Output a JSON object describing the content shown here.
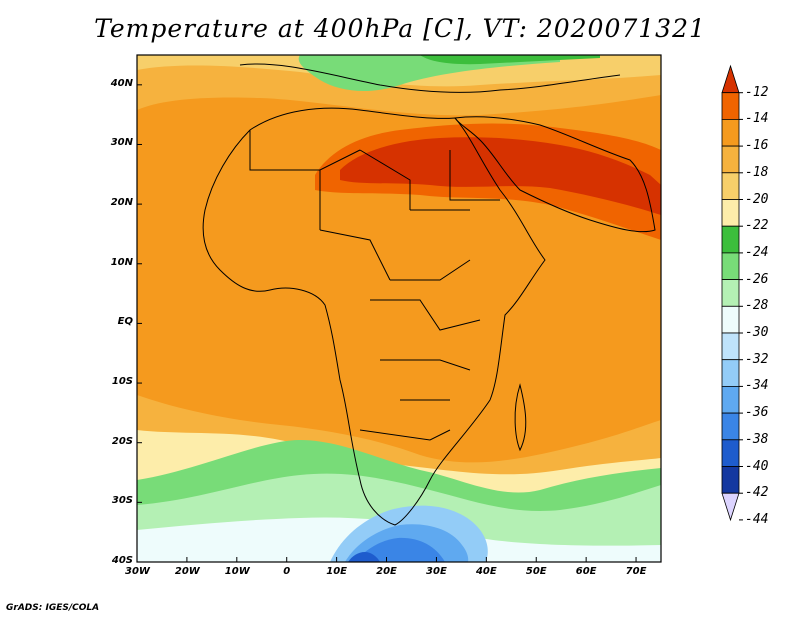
{
  "title": "Temperature at 400hPa [C], VT: 2020071321",
  "credit": "GrADS: IGES/COLA",
  "map": {
    "region": "Africa",
    "lon_range": [
      -30,
      75
    ],
    "lat_range": [
      -40,
      45
    ],
    "lon_ticks": [
      "30W",
      "20W",
      "10W",
      "0",
      "10E",
      "20E",
      "30E",
      "40E",
      "50E",
      "60E",
      "70E"
    ],
    "lat_ticks": [
      "40N",
      "30N",
      "20N",
      "10N",
      "EQ",
      "10S",
      "20S",
      "30S",
      "40S"
    ],
    "land_borders": true
  },
  "colorbar": {
    "labels": [
      "-12",
      "-14",
      "-16",
      "-18",
      "-20",
      "-22",
      "-24",
      "-26",
      "-28",
      "-30",
      "-32",
      "-34",
      "-36",
      "-38",
      "-40",
      "-42",
      "-44"
    ],
    "colors": [
      "#d63200",
      "#f06400",
      "#f59a1e",
      "#f6b23e",
      "#f7cf6a",
      "#fdedaa",
      "#3cbe3c",
      "#78dc78",
      "#b4f0b4",
      "#eefcfc",
      "#bfe3fb",
      "#93ccf7",
      "#5fa9f0",
      "#3a85e6",
      "#1e5ccd",
      "#1438a0",
      "#0a1464"
    ]
  }
}
